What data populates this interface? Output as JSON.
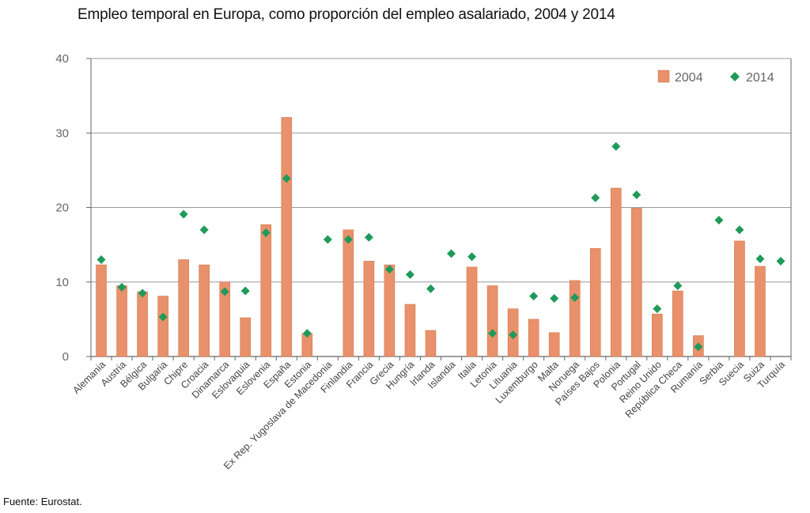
{
  "chart_data": {
    "type": "bar",
    "title": "Empleo temporal en Europa, como proporción del empleo asalariado, 2004 y 2014",
    "xlabel": "",
    "ylabel": "",
    "ylim": [
      0,
      40
    ],
    "yticks": [
      0,
      10,
      20,
      30,
      40
    ],
    "legend_position": "top-right",
    "categories": [
      "Alemania",
      "Austria",
      "Bélgica",
      "Bulgaria",
      "Chipre",
      "Croacia",
      "Dinamarca",
      "Eslovaquia",
      "Eslovenia",
      "España",
      "Estonia",
      "Ex Rep. Yugoslava de Macedonia",
      "Finlandia",
      "Francia",
      "Grecia",
      "Hungría",
      "Irlanda",
      "Islandia",
      "Italia",
      "Letonia",
      "Lituania",
      "Luxemburgo",
      "Malta",
      "Noruega",
      "Países Bajos",
      "Polonia",
      "Portugal",
      "Reino Unido",
      "República Checa",
      "Rumanía",
      "Serbia",
      "Suecia",
      "Suiza",
      "Turquía"
    ],
    "series": [
      {
        "name": "2004",
        "type": "bar",
        "color": "#e8916a",
        "values": [
          12.3,
          9.5,
          8.7,
          8.1,
          13.0,
          12.3,
          10.0,
          5.2,
          17.7,
          32.1,
          3.1,
          null,
          17.0,
          12.8,
          12.3,
          7.0,
          3.5,
          null,
          12.0,
          9.5,
          6.4,
          5.0,
          3.2,
          10.2,
          14.5,
          22.6,
          19.9,
          5.7,
          8.8,
          2.8,
          null,
          15.5,
          12.1,
          null
        ]
      },
      {
        "name": "2014",
        "type": "scatter",
        "marker": "diamond",
        "color": "#1f9a5a",
        "values": [
          13.0,
          9.3,
          8.5,
          5.3,
          19.1,
          17.0,
          8.7,
          8.8,
          16.6,
          23.9,
          3.1,
          15.7,
          15.7,
          16.0,
          11.7,
          11.0,
          9.1,
          13.8,
          13.4,
          3.1,
          2.9,
          8.1,
          7.8,
          7.9,
          21.3,
          28.2,
          21.7,
          6.4,
          9.5,
          1.3,
          18.3,
          17.0,
          13.1,
          12.8
        ]
      }
    ],
    "grid": true,
    "axis_color": "#666666",
    "grid_color": "#9a9a9a"
  },
  "source": "Fuente: Eurostat."
}
